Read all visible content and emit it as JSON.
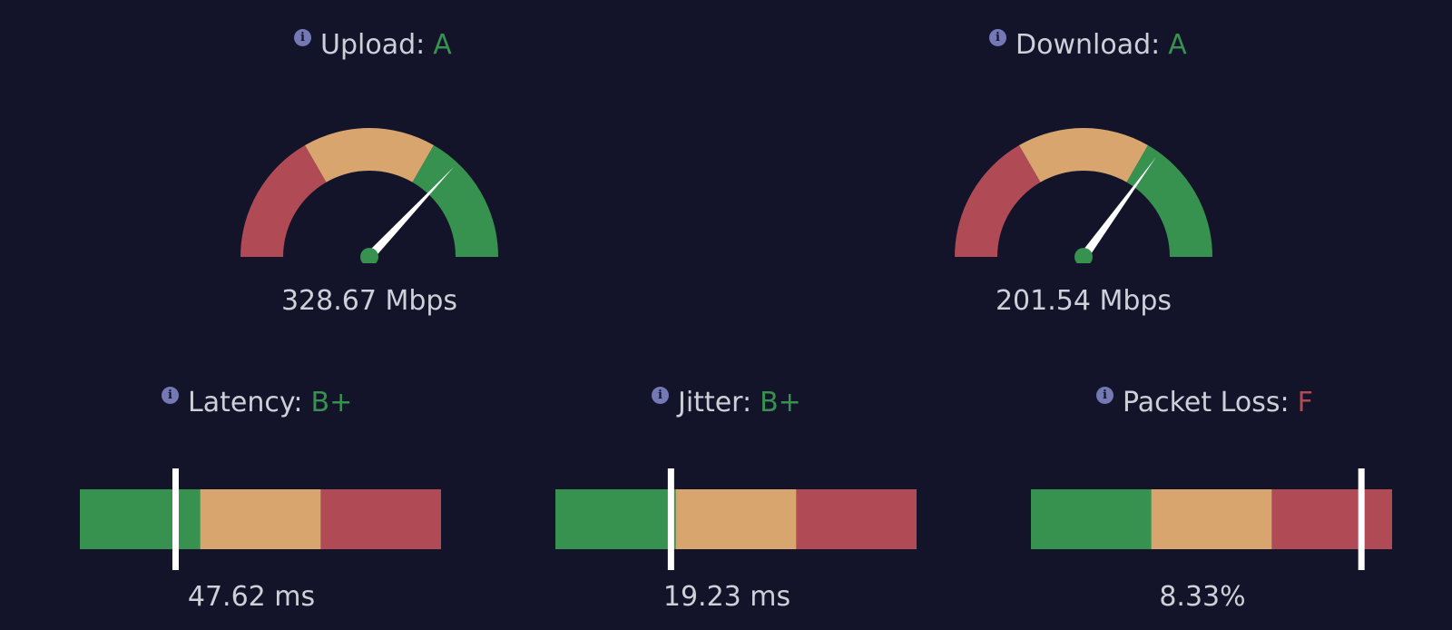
{
  "colors": {
    "background": "#13142a",
    "good": "#37914f",
    "medium": "#d8a56e",
    "bad": "#b04a55",
    "needle": "#ffffff",
    "hub": "#37914f",
    "text": "#cfcfd8",
    "info": "#7478b4"
  },
  "upload": {
    "label": "Upload:",
    "grade": "A",
    "grade_color": "#37914f",
    "value": "328.67 Mbps",
    "gauge_level": 0.74
  },
  "download": {
    "label": "Download:",
    "grade": "A",
    "grade_color": "#37914f",
    "value": "201.54 Mbps",
    "gauge_level": 0.7
  },
  "latency": {
    "label": "Latency:",
    "grade": "B+",
    "grade_color": "#37914f",
    "value": "47.62 ms",
    "marker_level": 0.265
  },
  "jitter": {
    "label": "Jitter:",
    "grade": "B+",
    "grade_color": "#37914f",
    "value": "19.23 ms",
    "marker_level": 0.32
  },
  "packet_loss": {
    "label": "Packet Loss:",
    "grade": "F",
    "grade_color": "#b04a55",
    "value": "8.33%",
    "marker_level": 0.915
  }
}
